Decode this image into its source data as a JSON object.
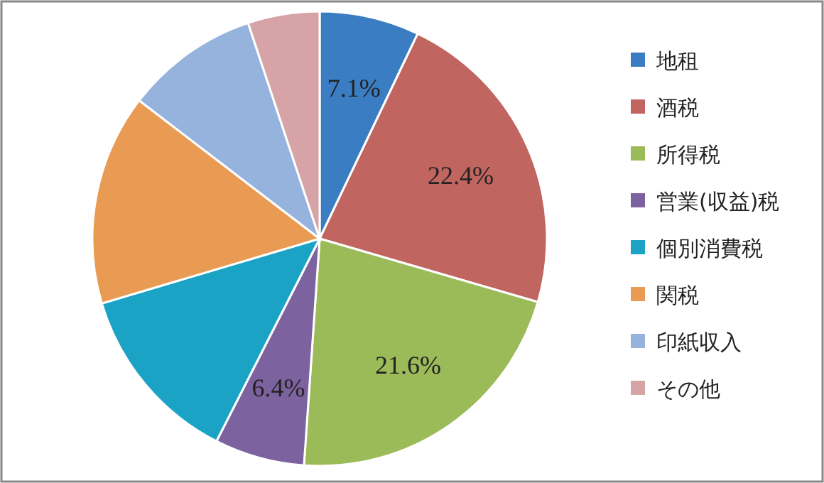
{
  "chart_data": {
    "type": "pie",
    "categories": [
      "地租",
      "酒税",
      "所得税",
      "営業(収益)税",
      "個別消費税",
      "関税",
      "印紙収入",
      "その他"
    ],
    "values": [
      7.1,
      22.4,
      21.6,
      6.4,
      12.9,
      15.0,
      9.5,
      5.1
    ],
    "value_labels": [
      "7.1%",
      "22.4%",
      "21.6%",
      "6.4%",
      null,
      null,
      null,
      null
    ],
    "colors": [
      "#3a7dc2",
      "#c0655f",
      "#9bbb59",
      "#7d62a0",
      "#1ba3c6",
      "#e99a53",
      "#95b3dc",
      "#d6a3a6"
    ],
    "legend": "right"
  }
}
